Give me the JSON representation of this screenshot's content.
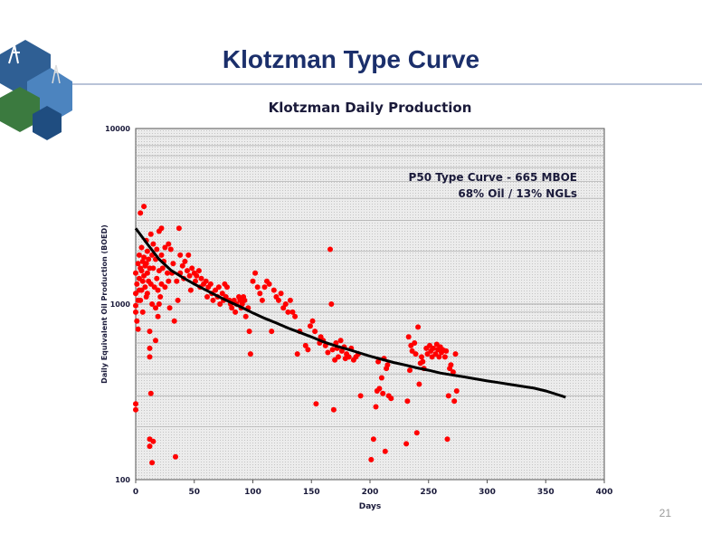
{
  "slide": {
    "title": "Klotzman Type Curve",
    "page_number": "21"
  },
  "colors": {
    "title": "#1b2f6b",
    "points": "#ff0000",
    "curve": "#000000",
    "plot_background": "#ebebeb"
  },
  "chart_data": {
    "type": "scatter",
    "title": "Klotzman Daily Production",
    "xlabel": "Days",
    "ylabel": "Daily Equivalent Oil Production (BOED)",
    "xlim": [
      0,
      400
    ],
    "ylim": [
      100,
      10000
    ],
    "yscale": "log",
    "xticks": [
      0,
      50,
      100,
      150,
      200,
      250,
      300,
      350,
      400
    ],
    "yticks": [
      100,
      1000,
      10000
    ],
    "grid": true,
    "annotation": [
      "P50 Type Curve - 665 MBOE",
      "68% Oil / 13% NGLs"
    ],
    "series": [
      {
        "kind": "scatter",
        "points": [
          [
            0,
            980
          ],
          [
            0,
            900
          ],
          [
            0,
            270
          ],
          [
            0,
            250
          ],
          [
            0,
            1500
          ],
          [
            0,
            1150
          ],
          [
            1,
            800
          ],
          [
            1,
            1300
          ],
          [
            2,
            1700
          ],
          [
            2,
            1050
          ],
          [
            2,
            720
          ],
          [
            3,
            1900
          ],
          [
            3,
            1400
          ],
          [
            3,
            1200
          ],
          [
            4,
            3300
          ],
          [
            4,
            1600
          ],
          [
            4,
            1050
          ],
          [
            5,
            2100
          ],
          [
            5,
            1550
          ],
          [
            5,
            1200
          ],
          [
            6,
            1750
          ],
          [
            6,
            1350
          ],
          [
            6,
            900
          ],
          [
            7,
            3600
          ],
          [
            7,
            1850
          ],
          [
            7,
            1450
          ],
          [
            8,
            1650
          ],
          [
            8,
            1250
          ],
          [
            9,
            2300
          ],
          [
            9,
            1700
          ],
          [
            9,
            1100
          ],
          [
            10,
            2000
          ],
          [
            10,
            1500
          ],
          [
            10,
            1150
          ],
          [
            11,
            1800
          ],
          [
            11,
            1350
          ],
          [
            12,
            1600
          ],
          [
            12,
            700
          ],
          [
            12,
            560
          ],
          [
            12,
            500
          ],
          [
            12,
            170
          ],
          [
            12,
            155
          ],
          [
            13,
            2500
          ],
          [
            13,
            1300
          ],
          [
            13,
            310
          ],
          [
            14,
            1900
          ],
          [
            14,
            1000
          ],
          [
            14,
            125
          ],
          [
            15,
            2200
          ],
          [
            15,
            1600
          ],
          [
            15,
            165
          ],
          [
            16,
            1250
          ],
          [
            17,
            1800
          ],
          [
            17,
            950
          ],
          [
            17,
            620
          ],
          [
            18,
            2050
          ],
          [
            18,
            1400
          ],
          [
            19,
            1200
          ],
          [
            19,
            850
          ],
          [
            20,
            2600
          ],
          [
            20,
            1550
          ],
          [
            20,
            1000
          ],
          [
            21,
            1100
          ],
          [
            22,
            2700
          ],
          [
            22,
            1900
          ],
          [
            22,
            1300
          ],
          [
            23,
            1600
          ],
          [
            24,
            1750
          ],
          [
            25,
            2100
          ],
          [
            25,
            1250
          ],
          [
            27,
            1500
          ],
          [
            28,
            2200
          ],
          [
            28,
            1350
          ],
          [
            29,
            950
          ],
          [
            30,
            2050
          ],
          [
            31,
            1500
          ],
          [
            32,
            1700
          ],
          [
            33,
            800
          ],
          [
            34,
            135
          ],
          [
            35,
            1350
          ],
          [
            36,
            1050
          ],
          [
            37,
            2700
          ],
          [
            38,
            1900
          ],
          [
            38,
            1500
          ],
          [
            40,
            1650
          ],
          [
            41,
            1400
          ],
          [
            42,
            1750
          ],
          [
            44,
            1550
          ],
          [
            45,
            1900
          ],
          [
            46,
            1450
          ],
          [
            47,
            1200
          ],
          [
            48,
            1600
          ],
          [
            50,
            1500
          ],
          [
            51,
            1350
          ],
          [
            52,
            1450
          ],
          [
            54,
            1550
          ],
          [
            55,
            1250
          ],
          [
            56,
            1400
          ],
          [
            58,
            1300
          ],
          [
            60,
            1350
          ],
          [
            61,
            1100
          ],
          [
            62,
            1250
          ],
          [
            64,
            1300
          ],
          [
            65,
            1150
          ],
          [
            66,
            1050
          ],
          [
            68,
            1200
          ],
          [
            70,
            1100
          ],
          [
            71,
            1250
          ],
          [
            72,
            1000
          ],
          [
            74,
            1150
          ],
          [
            75,
            1050
          ],
          [
            76,
            1300
          ],
          [
            77,
            1100
          ],
          [
            78,
            1250
          ],
          [
            80,
            1050
          ],
          [
            81,
            1000
          ],
          [
            82,
            950
          ],
          [
            84,
            1050
          ],
          [
            85,
            900
          ],
          [
            86,
            1000
          ],
          [
            88,
            1100
          ],
          [
            89,
            1050
          ],
          [
            90,
            950
          ],
          [
            91,
            1000
          ],
          [
            92,
            1100
          ],
          [
            93,
            1050
          ],
          [
            94,
            850
          ],
          [
            96,
            950
          ],
          [
            97,
            700
          ],
          [
            98,
            520
          ],
          [
            100,
            1350
          ],
          [
            102,
            1500
          ],
          [
            104,
            1250
          ],
          [
            106,
            1150
          ],
          [
            108,
            1050
          ],
          [
            110,
            1250
          ],
          [
            112,
            1350
          ],
          [
            114,
            1300
          ],
          [
            116,
            700
          ],
          [
            118,
            1200
          ],
          [
            120,
            1100
          ],
          [
            122,
            1050
          ],
          [
            124,
            1150
          ],
          [
            126,
            950
          ],
          [
            128,
            1000
          ],
          [
            130,
            900
          ],
          [
            132,
            1050
          ],
          [
            134,
            900
          ],
          [
            136,
            850
          ],
          [
            138,
            520
          ],
          [
            140,
            700
          ],
          [
            145,
            580
          ],
          [
            147,
            550
          ],
          [
            149,
            750
          ],
          [
            151,
            800
          ],
          [
            153,
            700
          ],
          [
            154,
            270
          ],
          [
            157,
            600
          ],
          [
            158,
            650
          ],
          [
            160,
            620
          ],
          [
            162,
            580
          ],
          [
            164,
            530
          ],
          [
            166,
            2050
          ],
          [
            167,
            1000
          ],
          [
            168,
            550
          ],
          [
            169,
            250
          ],
          [
            170,
            480
          ],
          [
            171,
            600
          ],
          [
            172,
            560
          ],
          [
            173,
            500
          ],
          [
            175,
            620
          ],
          [
            176,
            540
          ],
          [
            178,
            570
          ],
          [
            179,
            490
          ],
          [
            180,
            520
          ],
          [
            182,
            500
          ],
          [
            184,
            560
          ],
          [
            186,
            480
          ],
          [
            188,
            500
          ],
          [
            190,
            520
          ],
          [
            192,
            300
          ],
          [
            201,
            130
          ],
          [
            203,
            170
          ],
          [
            205,
            260
          ],
          [
            206,
            320
          ],
          [
            207,
            470
          ],
          [
            208,
            330
          ],
          [
            210,
            380
          ],
          [
            211,
            310
          ],
          [
            212,
            490
          ],
          [
            213,
            145
          ],
          [
            214,
            430
          ],
          [
            215,
            450
          ],
          [
            216,
            300
          ],
          [
            218,
            290
          ],
          [
            231,
            160
          ],
          [
            232,
            280
          ],
          [
            233,
            650
          ],
          [
            234,
            420
          ],
          [
            235,
            580
          ],
          [
            236,
            540
          ],
          [
            238,
            600
          ],
          [
            239,
            520
          ],
          [
            240,
            185
          ],
          [
            241,
            740
          ],
          [
            242,
            350
          ],
          [
            243,
            460
          ],
          [
            244,
            500
          ],
          [
            245,
            470
          ],
          [
            246,
            430
          ],
          [
            248,
            560
          ],
          [
            249,
            520
          ],
          [
            251,
            580
          ],
          [
            252,
            540
          ],
          [
            253,
            500
          ],
          [
            254,
            560
          ],
          [
            256,
            520
          ],
          [
            257,
            590
          ],
          [
            258,
            550
          ],
          [
            259,
            500
          ],
          [
            260,
            570
          ],
          [
            261,
            530
          ],
          [
            262,
            550
          ],
          [
            264,
            500
          ],
          [
            265,
            540
          ],
          [
            266,
            170
          ],
          [
            267,
            300
          ],
          [
            268,
            430
          ],
          [
            269,
            450
          ],
          [
            271,
            410
          ],
          [
            272,
            280
          ],
          [
            273,
            520
          ],
          [
            274,
            320
          ]
        ]
      },
      {
        "kind": "curve",
        "points": [
          [
            0,
            2700
          ],
          [
            10,
            2200
          ],
          [
            20,
            1800
          ],
          [
            30,
            1560
          ],
          [
            40,
            1420
          ],
          [
            50,
            1300
          ],
          [
            60,
            1200
          ],
          [
            70,
            1110
          ],
          [
            80,
            1030
          ],
          [
            90,
            960
          ],
          [
            100,
            890
          ],
          [
            110,
            830
          ],
          [
            120,
            780
          ],
          [
            130,
            730
          ],
          [
            140,
            690
          ],
          [
            150,
            650
          ],
          [
            160,
            610
          ],
          [
            170,
            580
          ],
          [
            180,
            555
          ],
          [
            190,
            530
          ],
          [
            200,
            505
          ],
          [
            210,
            485
          ],
          [
            220,
            465
          ],
          [
            230,
            450
          ],
          [
            240,
            433
          ],
          [
            250,
            420
          ],
          [
            260,
            405
          ],
          [
            270,
            395
          ],
          [
            280,
            385
          ],
          [
            290,
            375
          ],
          [
            300,
            365
          ],
          [
            310,
            357
          ],
          [
            320,
            348
          ],
          [
            330,
            340
          ],
          [
            340,
            332
          ],
          [
            350,
            320
          ],
          [
            360,
            305
          ],
          [
            367,
            295
          ]
        ]
      }
    ]
  }
}
